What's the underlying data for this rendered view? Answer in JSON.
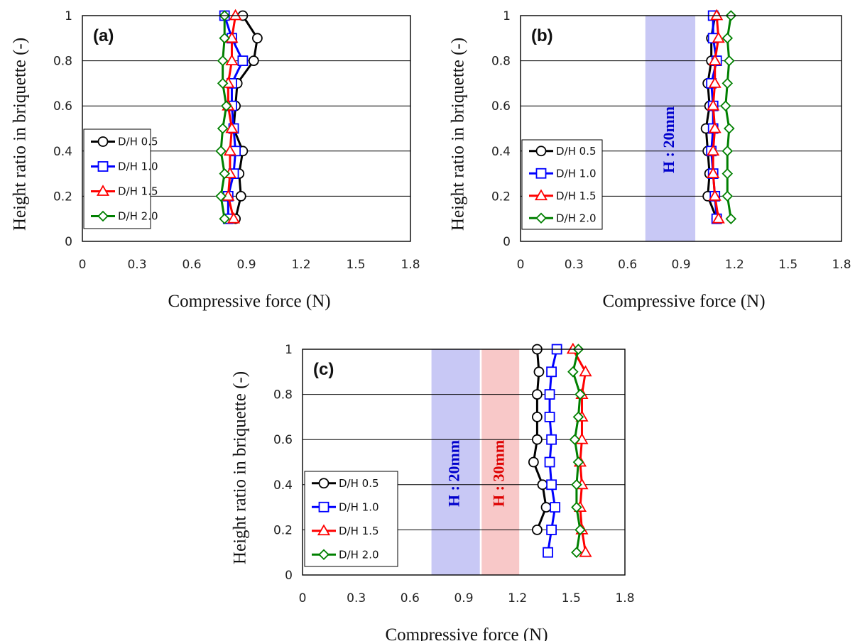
{
  "chart_data": [
    {
      "type": "line",
      "panel_label": "(a)",
      "xlabel": "Compressive force (N)",
      "ylabel": "Height ratio in briquette (-)",
      "xlim": [
        0,
        1.8
      ],
      "ylim": [
        0,
        1
      ],
      "xticks": [
        "0",
        "0.3",
        "0.6",
        "0.9",
        "1.2",
        "1.5",
        "1.8"
      ],
      "yticks": [
        "0",
        "0.2",
        "0.4",
        "0.6",
        "0.8",
        "1"
      ],
      "grid": "horizontal",
      "legend_position": "bottom-left",
      "bands": [],
      "series": [
        {
          "name": "D/H 0.5",
          "color": "#000000",
          "marker": "circle",
          "y": [
            0.1,
            0.2,
            0.3,
            0.4,
            0.5,
            0.6,
            0.7,
            0.8,
            0.9,
            1.0
          ],
          "x": [
            0.84,
            0.87,
            0.86,
            0.88,
            0.83,
            0.84,
            0.85,
            0.94,
            0.96,
            0.88
          ]
        },
        {
          "name": "D/H 1.0",
          "color": "#0000ff",
          "marker": "square",
          "y": [
            0.1,
            0.2,
            0.3,
            0.4,
            0.5,
            0.6,
            0.7,
            0.8,
            0.9,
            1.0
          ],
          "x": [
            0.8,
            0.8,
            0.83,
            0.84,
            0.83,
            0.82,
            0.82,
            0.88,
            0.82,
            0.78
          ]
        },
        {
          "name": "D/H 1.5",
          "color": "#ff0000",
          "marker": "triangle",
          "y": [
            0.1,
            0.2,
            0.3,
            0.4,
            0.5,
            0.6,
            0.7,
            0.8,
            0.9,
            1.0
          ],
          "x": [
            0.83,
            0.8,
            0.81,
            0.81,
            0.82,
            0.8,
            0.8,
            0.82,
            0.82,
            0.84
          ]
        },
        {
          "name": "D/H 2.0",
          "color": "#008000",
          "marker": "diamond",
          "y": [
            0.1,
            0.2,
            0.3,
            0.4,
            0.5,
            0.6,
            0.7,
            0.8,
            0.9,
            1.0
          ],
          "x": [
            0.78,
            0.76,
            0.78,
            0.76,
            0.77,
            0.79,
            0.77,
            0.77,
            0.78,
            0.78
          ]
        }
      ]
    },
    {
      "type": "line",
      "panel_label": "(b)",
      "xlabel": "Compressive force (N)",
      "ylabel": "Height ratio in briquette (-)",
      "xlim": [
        0,
        1.8
      ],
      "ylim": [
        0,
        1
      ],
      "xticks": [
        "0",
        "0.3",
        "0.6",
        "0.9",
        "1.2",
        "1.5",
        "1.8"
      ],
      "yticks": [
        "0",
        "0.2",
        "0.4",
        "0.6",
        "0.8",
        "1"
      ],
      "grid": "horizontal",
      "legend_position": "bottom-left",
      "bands": [
        {
          "label": "H : 20mm",
          "x": [
            0.7,
            0.98
          ],
          "color": "#c8c8f5",
          "text_color": "#0000cc"
        }
      ],
      "series": [
        {
          "name": "D/H 0.5",
          "color": "#000000",
          "marker": "circle",
          "y": [
            0.1,
            0.2,
            0.3,
            0.4,
            0.5,
            0.6,
            0.7,
            0.8,
            0.9,
            1.0
          ],
          "x": [
            1.1,
            1.05,
            1.06,
            1.05,
            1.04,
            1.06,
            1.05,
            1.07,
            1.07,
            1.09
          ]
        },
        {
          "name": "D/H 1.0",
          "color": "#0000ff",
          "marker": "square",
          "y": [
            0.1,
            0.2,
            0.3,
            0.4,
            0.5,
            0.6,
            0.7,
            0.8,
            0.9,
            1.0
          ],
          "x": [
            1.1,
            1.09,
            1.08,
            1.07,
            1.08,
            1.08,
            1.07,
            1.1,
            1.08,
            1.08
          ]
        },
        {
          "name": "D/H 1.5",
          "color": "#ff0000",
          "marker": "triangle",
          "y": [
            0.1,
            0.2,
            0.3,
            0.4,
            0.5,
            0.6,
            0.7,
            0.8,
            0.9,
            1.0
          ],
          "x": [
            1.11,
            1.09,
            1.08,
            1.08,
            1.09,
            1.08,
            1.09,
            1.09,
            1.11,
            1.1
          ]
        },
        {
          "name": "D/H 2.0",
          "color": "#008000",
          "marker": "diamond",
          "y": [
            0.1,
            0.2,
            0.3,
            0.4,
            0.5,
            0.6,
            0.7,
            0.8,
            0.9,
            1.0
          ],
          "x": [
            1.18,
            1.16,
            1.16,
            1.16,
            1.17,
            1.15,
            1.16,
            1.17,
            1.16,
            1.18
          ]
        }
      ]
    },
    {
      "type": "line",
      "panel_label": "(c)",
      "xlabel": "Compressive force (N)",
      "ylabel": "Height ratio in briquette (-)",
      "xlim": [
        0,
        1.8
      ],
      "ylim": [
        0,
        1
      ],
      "xticks": [
        "0",
        "0.3",
        "0.6",
        "0.9",
        "1.2",
        "1.5",
        "1.8"
      ],
      "yticks": [
        "0",
        "0.2",
        "0.4",
        "0.6",
        "0.8",
        "1"
      ],
      "grid": "horizontal",
      "legend_position": "bottom-left",
      "bands": [
        {
          "label": "H : 20mm",
          "x": [
            0.72,
            0.99
          ],
          "color": "#c8c8f5",
          "text_color": "#0000cc"
        },
        {
          "label": "H : 30mm",
          "x": [
            1.0,
            1.21
          ],
          "color": "#f8c8c8",
          "text_color": "#dd0000"
        }
      ],
      "series": [
        {
          "name": "D/H 0.5",
          "color": "#000000",
          "marker": "circle",
          "y": [
            0.2,
            0.3,
            0.4,
            0.5,
            0.6,
            0.7,
            0.8,
            0.9,
            1.0
          ],
          "x": [
            1.31,
            1.36,
            1.34,
            1.29,
            1.31,
            1.31,
            1.31,
            1.32,
            1.31
          ]
        },
        {
          "name": "D/H 1.0",
          "color": "#0000ff",
          "marker": "square",
          "y": [
            0.1,
            0.2,
            0.3,
            0.4,
            0.5,
            0.6,
            0.7,
            0.8,
            0.9,
            1.0
          ],
          "x": [
            1.37,
            1.39,
            1.41,
            1.39,
            1.38,
            1.39,
            1.38,
            1.38,
            1.39,
            1.42
          ]
        },
        {
          "name": "D/H 1.5",
          "color": "#ff0000",
          "marker": "triangle",
          "y": [
            0.1,
            0.2,
            0.3,
            0.4,
            0.5,
            0.6,
            0.7,
            0.8,
            0.9,
            1.0
          ],
          "x": [
            1.58,
            1.56,
            1.55,
            1.56,
            1.55,
            1.56,
            1.56,
            1.56,
            1.58,
            1.51
          ]
        },
        {
          "name": "D/H 2.0",
          "color": "#008000",
          "marker": "diamond",
          "y": [
            0.1,
            0.2,
            0.3,
            0.4,
            0.5,
            0.6,
            0.7,
            0.8,
            0.9,
            1.0
          ],
          "x": [
            1.53,
            1.55,
            1.53,
            1.53,
            1.54,
            1.52,
            1.54,
            1.55,
            1.51,
            1.54
          ]
        }
      ]
    }
  ]
}
